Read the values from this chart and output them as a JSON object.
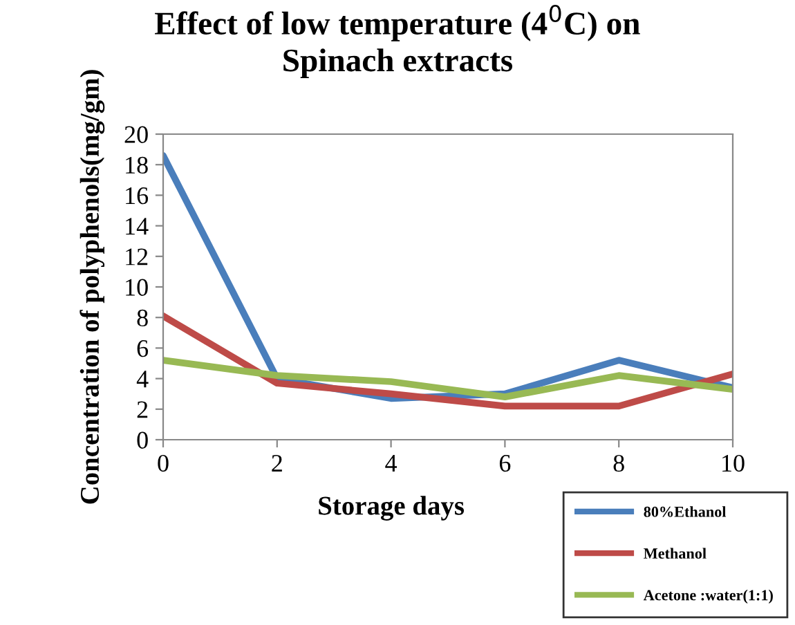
{
  "chart_data": {
    "type": "line",
    "title": "Effect of low temperature (4$^{0}$C) on\nSpinach extracts",
    "xlabel": "Storage days",
    "ylabel": "Concentration of polyphenols(mg/gm)",
    "x": [
      0,
      2,
      4,
      6,
      8,
      10
    ],
    "series": [
      {
        "name": "80%Ethanol",
        "color": "#4a7ebb",
        "values": [
          18.6,
          4.0,
          2.7,
          3.0,
          5.2,
          3.4
        ]
      },
      {
        "name": "Methanol",
        "color": "#be4b48",
        "values": [
          8.1,
          3.7,
          3.0,
          2.2,
          2.2,
          4.3
        ]
      },
      {
        "name": "Acetone :water(1:1)",
        "color": "#98b954",
        "values": [
          5.2,
          4.2,
          3.8,
          2.8,
          4.2,
          3.3
        ]
      }
    ],
    "xlim": [
      0,
      10
    ],
    "xticks": [
      0,
      2,
      4,
      6,
      8,
      10
    ],
    "ylim": [
      0,
      20
    ],
    "yticks": [
      0,
      2,
      4,
      6,
      8,
      10,
      12,
      14,
      16,
      18,
      20
    ],
    "grid": false,
    "legend": "bottom right",
    "marker": "none",
    "line_style": "solid"
  }
}
